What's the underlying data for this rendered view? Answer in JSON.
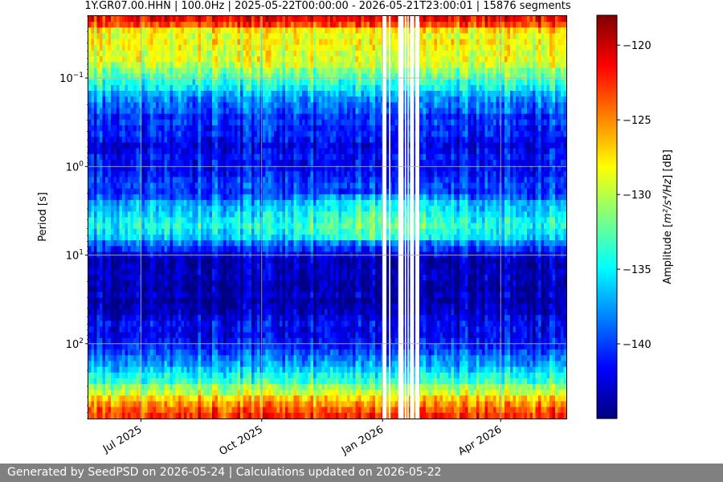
{
  "footer": {
    "text": "Generated by SeedPSD on 2026-05-24 | Calculations updated on 2026-05-22"
  },
  "chart_data": {
    "type": "heatmap",
    "title": "1Y.GR07.00.HHN | 100.0Hz | 2025-05-22T00:00:00 - 2026-05-21T23:00:01 | 15876 segments",
    "xlabel": "",
    "ylabel": "Period [s]",
    "x_range": [
      "2025-05-22",
      "2026-05-21"
    ],
    "x_ticks": [
      {
        "date": "2025-07-01",
        "label": "Jul 2025"
      },
      {
        "date": "2025-10-01",
        "label": "Oct 2025"
      },
      {
        "date": "2026-01-01",
        "label": "Jan 2026"
      },
      {
        "date": "2026-04-01",
        "label": "Apr 2026"
      }
    ],
    "y_scale": "log",
    "y_inverted": true,
    "y_range": [
      0.02,
      700
    ],
    "y_ticks": [
      {
        "value": 0.1,
        "base": "10",
        "exp": "−1"
      },
      {
        "value": 1,
        "base": "10",
        "exp": "0"
      },
      {
        "value": 10,
        "base": "10",
        "exp": "1"
      },
      {
        "value": 100,
        "base": "10",
        "exp": "2"
      }
    ],
    "grid": true,
    "colormap": "jet",
    "colorbar": {
      "label_prefix": "Amplitude [",
      "label_units": "m²/s⁴/Hz",
      "label_suffix": "] [dB]",
      "range": [
        -145,
        -118
      ],
      "ticks": [
        -120,
        -125,
        -130,
        -135,
        -140
      ],
      "tick_labels": [
        "−120",
        "−125",
        "−130",
        "−135",
        "−140"
      ]
    },
    "data_gaps": [
      [
        "2026-01-01",
        "2026-01-04"
      ],
      [
        "2026-01-06",
        "2026-01-07"
      ],
      [
        "2026-01-13",
        "2026-01-17"
      ],
      [
        "2026-01-18",
        "2026-01-19"
      ],
      [
        "2026-01-20",
        "2026-01-21"
      ],
      [
        "2026-01-22",
        "2026-01-25"
      ],
      [
        "2026-01-26",
        "2026-01-29"
      ]
    ],
    "amplitude_profile": [
      {
        "period": 0.02,
        "db": -119
      },
      {
        "period": 0.03,
        "db": -128
      },
      {
        "period": 0.06,
        "db": -129
      },
      {
        "period": 0.1,
        "db": -133
      },
      {
        "period": 0.2,
        "db": -139
      },
      {
        "period": 0.5,
        "db": -142
      },
      {
        "period": 1,
        "db": -142
      },
      {
        "period": 2,
        "db": -140
      },
      {
        "period": 3.5,
        "db": -135
      },
      {
        "period": 5,
        "db": -134
      },
      {
        "period": 7,
        "db": -138
      },
      {
        "period": 10,
        "db": -143
      },
      {
        "period": 30,
        "db": -144
      },
      {
        "period": 100,
        "db": -141
      },
      {
        "period": 200,
        "db": -136
      },
      {
        "period": 300,
        "db": -132
      },
      {
        "period": 500,
        "db": -125
      },
      {
        "period": 700,
        "db": -122
      }
    ]
  }
}
